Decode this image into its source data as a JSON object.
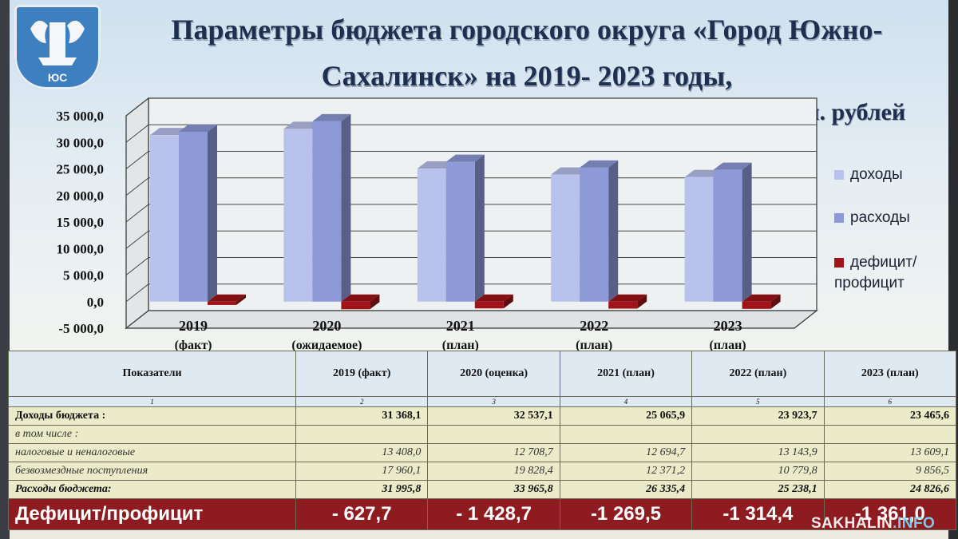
{
  "slide": {
    "title_line1": "Параметры бюджета городского округа «Город Южно-",
    "title_line2": "Сахалинск» на 2019- 2023 годы,",
    "units": "млн. рублей",
    "emblem_text": "ЮС"
  },
  "chart_data": {
    "type": "bar",
    "categories_line1": [
      "2019",
      "2020",
      "2021",
      "2022",
      "2023"
    ],
    "categories_line2": [
      "(факт)",
      "(ожидаемое)",
      "(план)",
      "(план)",
      "(план)"
    ],
    "series": [
      {
        "name": "доходы",
        "values": [
          31368.1,
          32537.1,
          25065.9,
          23923.7,
          23465.6
        ],
        "color": "#b9c2ec"
      },
      {
        "name": "расходы",
        "values": [
          31995.8,
          33965.8,
          26335.4,
          25238.1,
          24826.6
        ],
        "color": "#8e9ad8"
      },
      {
        "name": "дефицит/ профицит",
        "values": [
          -627.7,
          -1428.7,
          -1269.5,
          -1314.4,
          -1361.0
        ],
        "color": "#a01318"
      }
    ],
    "ylim": [
      -5000,
      35000
    ],
    "yticks": [
      "35 000,0",
      "30 000,0",
      "25 000,0",
      "20 000,0",
      "15 000,0",
      "10 000,0",
      "5 000,0",
      "0,0",
      "-5 000,0"
    ],
    "grid": true,
    "legend_position": "right"
  },
  "table": {
    "header": [
      "Показатели",
      "2019 (факт)",
      "2020 (оценка)",
      "2021 (план)",
      "2022 (план)",
      "2023 (план)"
    ],
    "index_row": [
      "1",
      "2",
      "3",
      "4",
      "5",
      "6"
    ],
    "rows": [
      {
        "label": "Доходы бюджета :",
        "values": [
          "31 368,1",
          "32 537,1",
          "25 065,9",
          "23 923,7",
          "23 465,6"
        ]
      },
      {
        "label": "в том числе :",
        "values": [
          "",
          "",
          "",
          "",
          ""
        ]
      },
      {
        "label": "налоговые и неналоговые",
        "values": [
          "13 408,0",
          "12 708,7",
          "12 694,7",
          "13 143,9",
          "13 609,1"
        ]
      },
      {
        "label": "безвозмездные поступления",
        "values": [
          "17 960,1",
          "19 828,4",
          "12 371,2",
          "10 779,8",
          "9 856,5"
        ]
      },
      {
        "label": "Расходы бюджета:",
        "values": [
          "31 995,8",
          "33 965,8",
          "26 335,4",
          "25 238,1",
          "24 826,6"
        ]
      },
      {
        "label": "Дефицит/профицит",
        "values": [
          "- 627,7",
          "- 1 428,7",
          "-1 269,5",
          "-1 314,4",
          "-1 361,0"
        ]
      }
    ]
  },
  "watermark": {
    "brand": "SAKHALIN",
    "domain": ".INFO"
  }
}
